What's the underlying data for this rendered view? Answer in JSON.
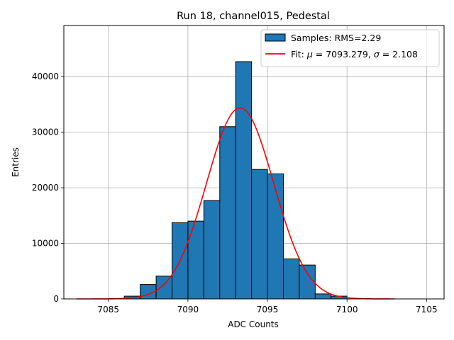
{
  "chart_data": {
    "type": "bar",
    "title": "Run 18, channel015, Pedestal",
    "xlabel": "ADC Counts",
    "ylabel": "Entries",
    "xlim": [
      7082.2,
      7106.1
    ],
    "ylim": [
      0,
      49200
    ],
    "xticks": [
      7085,
      7090,
      7095,
      7100,
      7105
    ],
    "yticks": [
      0,
      10000,
      20000,
      30000,
      40000
    ],
    "grid": true,
    "legend_position": "top-right",
    "bin_width": 1,
    "bar_color": "#1f77b4",
    "fit_color": "#ff0000",
    "histogram": {
      "name": "Samples: RMS=2.29",
      "bin_edges": [
        7083,
        7084,
        7085,
        7086,
        7087,
        7088,
        7089,
        7090,
        7091,
        7092,
        7093,
        7094,
        7095,
        7096,
        7097,
        7098,
        7099,
        7100,
        7101,
        7102,
        7103
      ],
      "counts": [
        0,
        0,
        0,
        500,
        2600,
        4100,
        13700,
        14000,
        17700,
        31000,
        42700,
        23300,
        22500,
        7200,
        6100,
        900,
        500,
        0,
        0,
        0
      ]
    },
    "fit": {
      "name_prefix": "Fit: ",
      "mu_symbol": "μ",
      "mu_text": " = 7093.279, ",
      "sigma_symbol": "σ",
      "sigma_text": " = 2.108",
      "mu": 7093.279,
      "sigma": 2.108,
      "amplitude": 34400,
      "x_range": [
        7083,
        7103
      ]
    }
  }
}
